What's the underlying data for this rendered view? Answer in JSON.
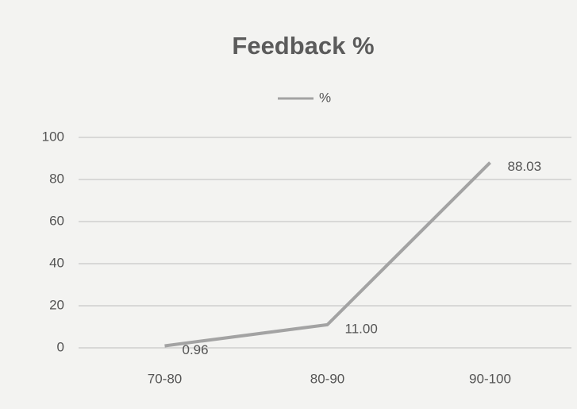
{
  "chart_data": {
    "type": "line",
    "title": "Feedback %",
    "categories": [
      "70-80",
      "80-90",
      "90-100"
    ],
    "series": [
      {
        "name": "%",
        "color": "#a3a3a3",
        "values": [
          0.96,
          11,
          88.03
        ],
        "value_labels": [
          "0.96",
          "11.00",
          "88.03"
        ]
      }
    ],
    "ylim": [
      0,
      100
    ],
    "yticks": [
      0,
      20,
      40,
      60,
      80,
      100
    ],
    "grid": true,
    "legend": "top"
  }
}
